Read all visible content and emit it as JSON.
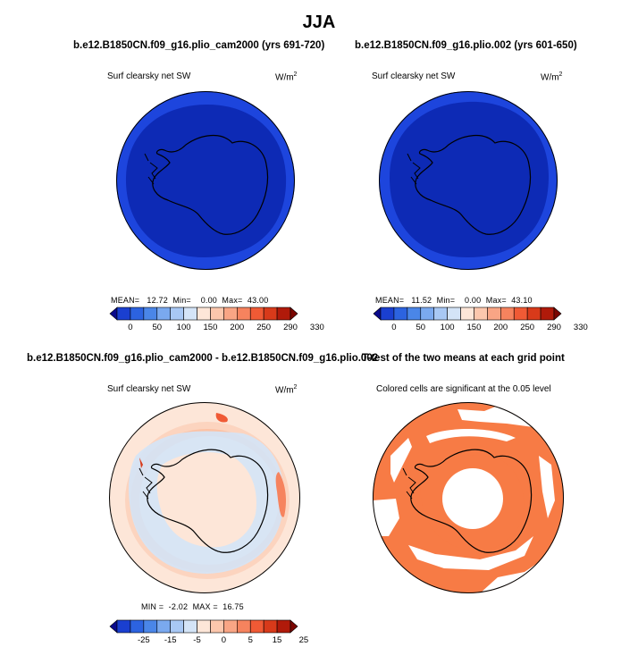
{
  "figure": {
    "title": "JJA"
  },
  "panels": [
    {
      "case_title": "b.e12.B1850CN.f09_g16.plio_cam2000 (yrs 691-720)",
      "variable": "Surf clearsky net SW",
      "units_base": "W/m",
      "units_exp": "2",
      "stats": {
        "mean_label": "MEAN=",
        "mean": "12.72",
        "min_label": "Min=",
        "min": "0.00",
        "max_label": "Max=",
        "max": "43.00"
      }
    },
    {
      "case_title": "b.e12.B1850CN.f09_g16.plio.002 (yrs 601-650)",
      "variable": "Surf clearsky net SW",
      "units_base": "W/m",
      "units_exp": "2",
      "stats": {
        "mean_label": "MEAN=",
        "mean": "11.52",
        "min_label": "Min=",
        "min": "0.00",
        "max_label": "Max=",
        "max": "43.10"
      }
    },
    {
      "case_title": "b.e12.B1850CN.f09_g16.plio_cam2000 - b.e12.B1850CN.f09_g16.plio.002",
      "variable": "Surf clearsky net SW",
      "units_base": "W/m",
      "units_exp": "2",
      "stats": {
        "min_label": "MIN =",
        "min": "-2.02",
        "max_label": "MAX =",
        "max": "16.75"
      }
    },
    {
      "case_title": "T-test of the two means at each grid point",
      "variable": "Colored cells are significant at the 0.05 level"
    }
  ],
  "chart_data": [
    {
      "type": "heatmap",
      "map_projection": "south polar stereographic",
      "title": "b.e12.B1850CN.f09_g16.plio_cam2000 (yrs 691-720)",
      "field": "Surf clearsky net SW",
      "units": "W/m2",
      "mean": 12.72,
      "min": 0.0,
      "max": 43.0,
      "colorbar_ticks": [
        "0",
        "50",
        "100",
        "150",
        "200",
        "250",
        "290",
        "330"
      ],
      "colorbar_colors": [
        "#0a0a8c",
        "#1a3fd0",
        "#2c63e0",
        "#4a86e8",
        "#7aa9ef",
        "#a8c8f4",
        "#d4e4f7",
        "#fde6d8",
        "#fcc7ad",
        "#f9a585",
        "#f6835e",
        "#f05a35",
        "#d83a1a",
        "#b01a0a",
        "#7a0500"
      ]
    },
    {
      "type": "heatmap",
      "map_projection": "south polar stereographic",
      "title": "b.e12.B1850CN.f09_g16.plio.002 (yrs 601-650)",
      "field": "Surf clearsky net SW",
      "units": "W/m2",
      "mean": 11.52,
      "min": 0.0,
      "max": 43.1,
      "colorbar_ticks": [
        "0",
        "50",
        "100",
        "150",
        "200",
        "250",
        "290",
        "330"
      ],
      "colorbar_colors": [
        "#0a0a8c",
        "#1a3fd0",
        "#2c63e0",
        "#4a86e8",
        "#7aa9ef",
        "#a8c8f4",
        "#d4e4f7",
        "#fde6d8",
        "#fcc7ad",
        "#f9a585",
        "#f6835e",
        "#f05a35",
        "#d83a1a",
        "#b01a0a",
        "#7a0500"
      ]
    },
    {
      "type": "heatmap",
      "map_projection": "south polar stereographic",
      "title": "b.e12.B1850CN.f09_g16.plio_cam2000 - b.e12.B1850CN.f09_g16.plio.002",
      "field": "Surf clearsky net SW",
      "units": "W/m2",
      "min": -2.02,
      "max": 16.75,
      "colorbar_ticks": [
        "-25",
        "-15",
        "-5",
        "0",
        "5",
        "15",
        "25"
      ],
      "colorbar_colors": [
        "#0a0a8c",
        "#1a3fd0",
        "#2c63e0",
        "#4a86e8",
        "#7aa9ef",
        "#a8c8f4",
        "#d4e4f7",
        "#fde6d8",
        "#fcc7ad",
        "#f9a585",
        "#f6835e",
        "#f05a35",
        "#d83a1a",
        "#b01a0a",
        "#7a0500"
      ]
    },
    {
      "type": "heatmap",
      "map_projection": "south polar stereographic",
      "title": "T-test of the two means at each grid point",
      "note": "Colored cells are significant at the 0.05 level",
      "significance_level": 0.05,
      "significant_color": "#f77b45"
    }
  ]
}
